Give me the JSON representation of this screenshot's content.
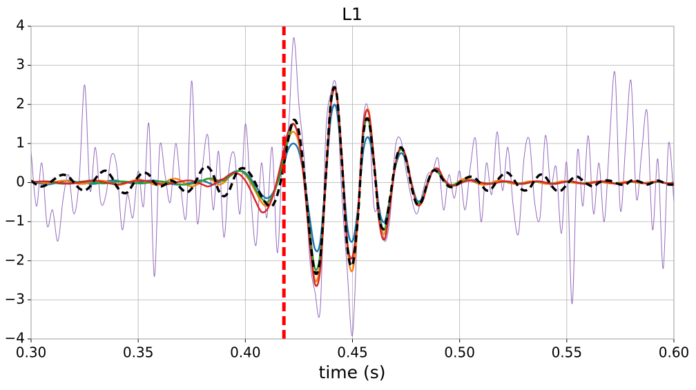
{
  "chart_data": {
    "type": "line",
    "title": "L1",
    "x_label": "time (s)",
    "x": [
      0.3,
      0.3025,
      0.305,
      0.3075,
      0.31,
      0.3125,
      0.315,
      0.3175,
      0.32,
      0.3225,
      0.325,
      0.3275,
      0.33,
      0.3325,
      0.335,
      0.3375,
      0.34,
      0.3425,
      0.345,
      0.3475,
      0.35,
      0.3525,
      0.355,
      0.3575,
      0.36,
      0.3625,
      0.365,
      0.3675,
      0.37,
      0.3725,
      0.375,
      0.3775,
      0.38,
      0.3825,
      0.385,
      0.3875,
      0.39,
      0.3925,
      0.395,
      0.3975,
      0.4,
      0.4025,
      0.405,
      0.4075,
      0.41,
      0.4125,
      0.415,
      0.4175,
      0.42,
      0.4225,
      0.425,
      0.4275,
      0.43,
      0.4325,
      0.435,
      0.4375,
      0.44,
      0.4425,
      0.445,
      0.4475,
      0.45,
      0.4525,
      0.455,
      0.4575,
      0.46,
      0.4625,
      0.465,
      0.4675,
      0.47,
      0.4725,
      0.475,
      0.4775,
      0.48,
      0.4825,
      0.485,
      0.4875,
      0.49,
      0.4925,
      0.495,
      0.4975,
      0.5,
      0.5025,
      0.505,
      0.5075,
      0.51,
      0.5125,
      0.515,
      0.5175,
      0.52,
      0.5225,
      0.525,
      0.5275,
      0.53,
      0.5325,
      0.535,
      0.5375,
      0.54,
      0.5425,
      0.545,
      0.5475,
      0.55,
      0.5525,
      0.555,
      0.5575,
      0.56,
      0.5625,
      0.565,
      0.5675,
      0.57,
      0.5725,
      0.575,
      0.5775,
      0.58,
      0.5825,
      0.585,
      0.5875,
      0.59,
      0.5925,
      0.595,
      0.5975,
      0.6
    ],
    "series": [
      {
        "color": "#9467bd",
        "width": 1,
        "values": [
          0.8,
          -0.6,
          0.5,
          -1.1,
          -0.7,
          -1.5,
          -0.4,
          0.2,
          -0.8,
          0.1,
          2.5,
          -0.2,
          0.9,
          -0.5,
          -0.3,
          0.7,
          0.4,
          -1.2,
          -0.3,
          -0.9,
          0.3,
          -0.6,
          1.5,
          -2.4,
          0.9,
          0.2,
          -0.5,
          1.0,
          -0.2,
          -0.8,
          2.6,
          -1.0,
          0.4,
          1.2,
          -0.7,
          0.8,
          -1.4,
          0.4,
          0.7,
          -0.8,
          1.5,
          -0.3,
          -1.6,
          0.5,
          -0.9,
          0.9,
          -1.8,
          1.0,
          1.3,
          3.7,
          2.0,
          0.6,
          -1.9,
          -2.8,
          -3.2,
          1.2,
          2.3,
          2.4,
          -0.3,
          -2.2,
          -3.9,
          -0.9,
          1.6,
          1.8,
          -0.6,
          -0.6,
          -1.5,
          -0.9,
          0.9,
          1.1,
          0.3,
          -0.4,
          -0.8,
          -0.3,
          0.2,
          0.3,
          0.6,
          -0.7,
          0.2,
          -0.4,
          0.3,
          -0.7,
          0.4,
          1.1,
          -1.0,
          0.5,
          -0.3,
          1.3,
          -0.2,
          0.9,
          -0.6,
          -1.3,
          0.6,
          1.1,
          -0.5,
          -0.9,
          1.2,
          -0.1,
          0.4,
          -1.3,
          0.5,
          -3.1,
          0.8,
          -0.6,
          1.2,
          -0.8,
          0.5,
          -1.0,
          1.1,
          2.8,
          -0.7,
          1.0,
          2.6,
          -0.4,
          0.8,
          1.8,
          -1.2,
          0.6,
          -2.2,
          1.0,
          -0.5
        ]
      },
      {
        "color": "#1f77b4",
        "width": 2.5,
        "values": [
          0.02,
          0,
          -0.03,
          -0.05,
          -0.03,
          0,
          0.03,
          0.05,
          0.03,
          0,
          0,
          -0.03,
          -0.03,
          0,
          0.03,
          0.05,
          0.05,
          0.02,
          0,
          -0.02,
          0,
          0.03,
          0.05,
          0.05,
          0.03,
          0,
          -0.03,
          -0.05,
          -0.05,
          -0.03,
          0,
          0.05,
          0.05,
          0,
          -0.05,
          0,
          0.1,
          0.2,
          0.28,
          0.3,
          0.25,
          0.1,
          -0.1,
          -0.3,
          -0.4,
          -0.3,
          0,
          0.4,
          0.85,
          1.0,
          0.8,
          0.1,
          -0.9,
          -1.7,
          -1.5,
          0.1,
          1.7,
          1.9,
          0.6,
          -1.1,
          -1.5,
          -0.7,
          0.8,
          1.15,
          0.5,
          -0.7,
          -1.0,
          -0.4,
          0.4,
          0.75,
          0.55,
          0,
          -0.45,
          -0.4,
          0,
          0.3,
          0.3,
          0.1,
          -0.05,
          -0.05,
          0,
          0.05,
          0.08,
          0.05,
          0,
          -0.03,
          -0.03,
          0,
          0.03,
          0.03,
          0,
          -0.03,
          -0.03,
          0,
          0.03,
          0.03,
          0,
          -0.03,
          -0.03,
          0,
          0.02,
          0.02,
          0,
          -0.02,
          -0.02,
          0,
          0.02,
          0.02,
          0,
          -0.02,
          -0.02,
          0,
          0.02,
          0.02,
          0,
          -0.02,
          0,
          0.02,
          0,
          -0.02,
          0
        ]
      },
      {
        "color": "#ff7f0e",
        "width": 2.5,
        "values": [
          0.03,
          0.02,
          0,
          -0.02,
          0,
          0.03,
          0.05,
          0.03,
          0,
          -0.03,
          -0.03,
          0,
          0.03,
          0.05,
          0.03,
          0,
          -0.05,
          -0.05,
          0,
          0.05,
          0.08,
          0.05,
          0,
          -0.05,
          -0.05,
          0,
          0.08,
          0.1,
          0.05,
          -0.05,
          -0.1,
          -0.05,
          0.05,
          0.1,
          0.05,
          -0.05,
          0,
          0.15,
          0.25,
          0.3,
          0.2,
          0,
          -0.25,
          -0.5,
          -0.6,
          -0.4,
          0,
          0.5,
          1.1,
          1.3,
          1.0,
          0,
          -1.4,
          -2.5,
          -2.0,
          0.1,
          2.1,
          2.3,
          0.7,
          -1.6,
          -2.25,
          -1.0,
          1.3,
          1.85,
          0.6,
          -0.9,
          -1.3,
          -0.5,
          0.45,
          0.85,
          0.6,
          -0.05,
          -0.5,
          -0.5,
          -0.05,
          0.3,
          0.35,
          0.1,
          -0.05,
          -0.05,
          0.05,
          0.1,
          0.08,
          0,
          -0.05,
          -0.05,
          0,
          0.05,
          0.05,
          0,
          -0.03,
          -0.03,
          0,
          0.03,
          0.03,
          0,
          -0.03,
          -0.03,
          0,
          0.03,
          0.03,
          0,
          -0.02,
          -0.02,
          0,
          0.02,
          0.02,
          0,
          -0.02,
          -0.02,
          0,
          0.02,
          0.02,
          0,
          -0.02,
          0,
          0.02,
          0.02,
          0,
          -0.02,
          0
        ]
      },
      {
        "color": "#2ca02c",
        "width": 2.5,
        "values": [
          0,
          0.02,
          0.03,
          0.02,
          0,
          -0.02,
          -0.03,
          -0.02,
          0,
          0.02,
          0.03,
          0.02,
          0,
          -0.02,
          -0.02,
          0,
          0.02,
          0.03,
          0.02,
          0,
          -0.02,
          -0.02,
          0,
          0.02,
          0.03,
          0.02,
          0,
          -0.03,
          -0.05,
          -0.05,
          -0.03,
          0,
          0.05,
          0.1,
          0.1,
          0.05,
          0.05,
          0.15,
          0.25,
          0.3,
          0.22,
          0.05,
          -0.2,
          -0.4,
          -0.5,
          -0.35,
          0,
          0.5,
          1.1,
          1.5,
          1.1,
          0.1,
          -1.2,
          -2.2,
          -1.8,
          0.1,
          2.1,
          2.3,
          0.6,
          -1.5,
          -1.9,
          -0.8,
          1.2,
          1.6,
          0.5,
          -0.85,
          -1.2,
          -0.45,
          0.45,
          0.85,
          0.6,
          -0.05,
          -0.5,
          -0.45,
          0,
          0.3,
          0.25,
          0.05,
          -0.05,
          -0.05,
          0.02,
          0.05,
          0.05,
          0.02,
          0,
          -0.02,
          -0.02,
          0,
          0.02,
          0.02,
          0,
          -0.02,
          -0.02,
          0,
          0.02,
          0.02,
          0,
          -0.02,
          -0.02,
          0,
          0.02,
          0.02,
          0,
          -0.02,
          -0.02,
          0,
          0.02,
          0.02,
          0,
          -0.02,
          -0.02,
          0,
          0.02,
          0.02,
          0,
          -0.02,
          0,
          0.02,
          0,
          -0.02,
          0
        ]
      },
      {
        "color": "#d62728",
        "width": 2.5,
        "values": [
          0,
          0.02,
          0.03,
          0.03,
          0.02,
          0,
          -0.02,
          -0.03,
          -0.02,
          0,
          0.03,
          0.05,
          0.05,
          0.03,
          0,
          -0.03,
          -0.05,
          -0.03,
          0,
          0.03,
          0.05,
          0.05,
          0.03,
          0,
          -0.03,
          -0.05,
          -0.03,
          0,
          0.03,
          0.05,
          0.05,
          0,
          -0.05,
          -0.1,
          -0.05,
          0.05,
          0.1,
          0.2,
          0.25,
          0.2,
          0.05,
          -0.2,
          -0.5,
          -0.75,
          -0.7,
          -0.4,
          0.1,
          0.7,
          1.3,
          1.5,
          1.1,
          0,
          -1.5,
          -2.6,
          -2.2,
          0,
          2.0,
          2.3,
          0.7,
          -1.5,
          -1.9,
          -0.8,
          1.4,
          1.8,
          0.6,
          -1.0,
          -1.45,
          -0.6,
          0.45,
          0.9,
          0.65,
          0,
          -0.55,
          -0.5,
          -0.05,
          0.3,
          0.35,
          0.1,
          -0.05,
          -0.08,
          -0.03,
          0.03,
          0.05,
          0.03,
          0,
          -0.03,
          -0.03,
          0,
          0.03,
          0.03,
          0,
          -0.03,
          -0.03,
          0,
          0.03,
          0.03,
          0,
          -0.03,
          -0.03,
          0,
          0.03,
          0.03,
          0,
          -0.03,
          -0.03,
          0,
          0.03,
          0.03,
          0,
          -0.03,
          -0.03,
          0,
          0.03,
          0.03,
          0,
          -0.03,
          0,
          0.03,
          0,
          -0.03,
          0
        ]
      },
      {
        "color": "#000000",
        "width": 3.5,
        "dash": true,
        "values": [
          0.05,
          -0.05,
          -0.1,
          -0.05,
          0.05,
          0.15,
          0.2,
          0.15,
          0,
          -0.15,
          -0.2,
          -0.1,
          0.1,
          0.25,
          0.3,
          0.15,
          -0.1,
          -0.25,
          -0.25,
          -0.05,
          0.15,
          0.25,
          0.2,
          0,
          -0.1,
          -0.05,
          0.05,
          0,
          -0.15,
          -0.25,
          -0.15,
          0.1,
          0.35,
          0.4,
          0.2,
          -0.2,
          -0.35,
          -0.2,
          0.15,
          0.35,
          0.35,
          0.2,
          -0.05,
          -0.35,
          -0.55,
          -0.6,
          -0.3,
          0.3,
          1.1,
          1.6,
          1.3,
          0.2,
          -1.3,
          -2.3,
          -1.9,
          0.1,
          2.1,
          2.3,
          0.6,
          -1.6,
          -2.1,
          -0.9,
          1.2,
          1.6,
          0.5,
          -0.9,
          -1.15,
          -0.4,
          0.5,
          0.9,
          0.6,
          -0.1,
          -0.55,
          -0.45,
          0,
          0.3,
          0.25,
          0.05,
          -0.1,
          -0.1,
          0,
          0.1,
          0.15,
          0.1,
          -0.05,
          -0.2,
          -0.15,
          0.05,
          0.2,
          0.25,
          0.1,
          -0.1,
          -0.2,
          -0.15,
          0.05,
          0.2,
          0.15,
          -0.05,
          -0.2,
          -0.2,
          -0.05,
          0.1,
          0.15,
          0.05,
          -0.05,
          -0.1,
          0,
          0.05,
          0.05,
          0,
          -0.05,
          -0.05,
          0.05,
          0.05,
          0,
          -0.05,
          0,
          0.05,
          0,
          -0.05,
          -0.05
        ]
      }
    ],
    "vline": {
      "x": 0.418,
      "color": "#ff0000"
    },
    "xlim": [
      0.3,
      0.6
    ],
    "xticks": [
      {
        "value": 0.3,
        "label": "0.30"
      },
      0.35,
      {
        "value": 0.4,
        "label": "0.40"
      },
      0.45,
      {
        "value": 0.5,
        "label": "0.50"
      },
      0.55,
      {
        "value": 0.6,
        "label": "0.60"
      }
    ],
    "ylim": [
      -4,
      4
    ],
    "yticks": [
      {
        "value": -4,
        "label": "−4"
      },
      {
        "value": -3,
        "label": "−3"
      },
      {
        "value": -2,
        "label": "−2"
      },
      {
        "value": -1,
        "label": "−1"
      },
      0,
      1,
      2,
      3,
      4
    ],
    "grid": true
  }
}
